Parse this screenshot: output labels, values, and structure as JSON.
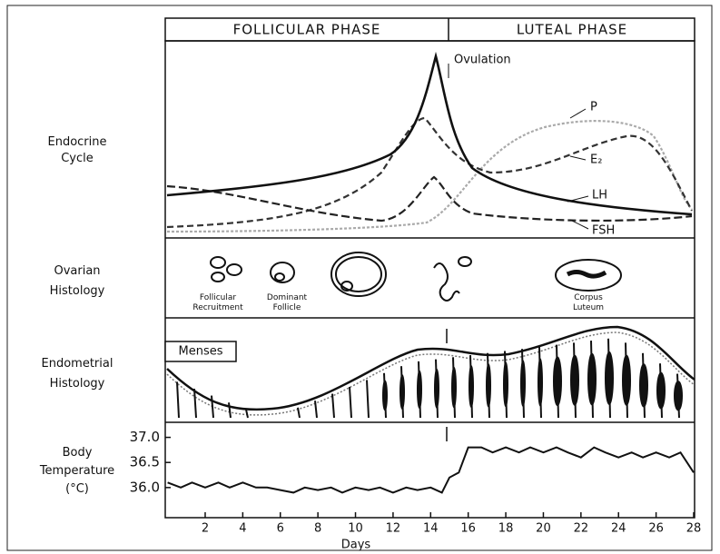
{
  "header": {
    "phases": [
      "FOLLICULAR PHASE",
      "LUTEAL PHASE"
    ]
  },
  "panels": {
    "endocrine": {
      "label": [
        "Endocrine",
        "Cycle"
      ],
      "ovulation": "Ovulation",
      "curves": [
        "P",
        "E₂",
        "LH",
        "FSH"
      ]
    },
    "ovarian": {
      "label": [
        "Ovarian",
        "Histology"
      ],
      "stages": [
        [
          "Follicular",
          "Recruitment"
        ],
        [
          "Dominant",
          "Follicle"
        ],
        [
          "Corpus",
          "Luteum"
        ]
      ]
    },
    "endometrial": {
      "label": [
        "Endometrial",
        "Histology"
      ],
      "menses": "Menses"
    }
  },
  "chart_data": {
    "type": "line",
    "y_label": [
      "Body",
      "Temperature",
      "(°C)"
    ],
    "x_label": "Days",
    "x": [
      0,
      0.7,
      1.3,
      2,
      2.7,
      3.3,
      4,
      4.7,
      5.3,
      6,
      6.7,
      7.3,
      8,
      8.7,
      9.3,
      10,
      10.7,
      11.3,
      12,
      12.7,
      13.3,
      14,
      14.6,
      15,
      15.5,
      16,
      16.7,
      17.3,
      18,
      18.7,
      19.3,
      20,
      20.7,
      21.3,
      22,
      22.7,
      23.3,
      24,
      24.7,
      25.3,
      26,
      26.7,
      27.3,
      28
    ],
    "values": [
      36.1,
      36.0,
      36.1,
      36.0,
      36.1,
      36.0,
      36.1,
      36.0,
      36.0,
      35.95,
      35.9,
      36.0,
      35.95,
      36.0,
      35.9,
      36.0,
      35.95,
      36.0,
      35.9,
      36.0,
      35.95,
      36.0,
      35.9,
      36.2,
      36.3,
      36.8,
      36.8,
      36.7,
      36.8,
      36.7,
      36.8,
      36.7,
      36.8,
      36.7,
      36.6,
      36.8,
      36.7,
      36.6,
      36.7,
      36.6,
      36.7,
      36.6,
      36.7,
      36.3
    ],
    "color": "#111111",
    "xlim": [
      0,
      28
    ],
    "ylim": [
      35.4,
      37.3
    ],
    "xticks": [
      2,
      4,
      6,
      8,
      10,
      12,
      14,
      16,
      18,
      20,
      22,
      24,
      26,
      28
    ],
    "yticks": [
      {
        "value": 36,
        "label": "36.0"
      },
      36.5,
      {
        "value": 37,
        "label": "37.0"
      }
    ]
  }
}
